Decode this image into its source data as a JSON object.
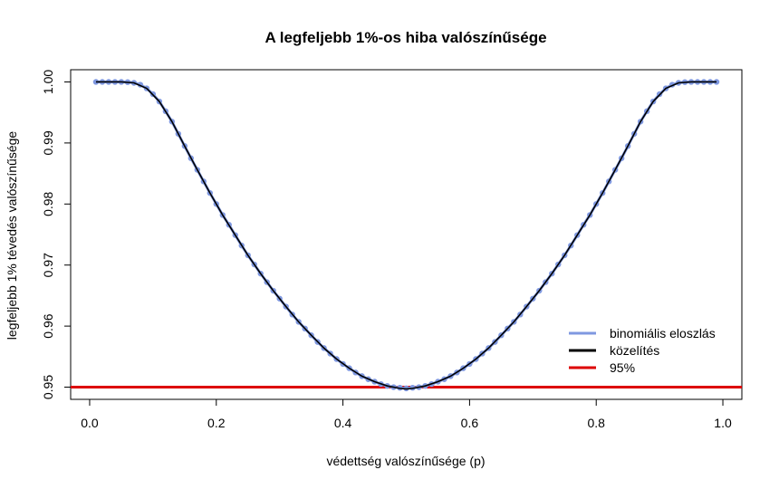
{
  "chart_data": {
    "type": "line",
    "title": "A legfeljebb 1%-os hiba valószínűsége",
    "xlabel": "védettség valószínűsége (p)",
    "ylabel": "legfeljebb 1% tévedés valószínűsége",
    "xlim": [
      -0.03,
      1.03
    ],
    "ylim": [
      0.948,
      1.002
    ],
    "x_ticks": [
      0.0,
      0.2,
      0.4,
      0.6,
      0.8,
      1.0
    ],
    "x_tick_labels": [
      "0.0",
      "0.2",
      "0.4",
      "0.6",
      "0.8",
      "1.0"
    ],
    "y_ticks": [
      0.95,
      0.96,
      0.97,
      0.98,
      0.99,
      1.0
    ],
    "y_tick_labels": [
      "0.95",
      "0.96",
      "0.97",
      "0.98",
      "0.99",
      "1.00"
    ],
    "grid": false,
    "legend_position": "bottom-right",
    "series": [
      {
        "name": "binomiális eloszlás",
        "color": "#7f98e0",
        "style": "points-line",
        "x": [
          0.01,
          0.02,
          0.03,
          0.04,
          0.05,
          0.06,
          0.07,
          0.08,
          0.09,
          0.1,
          0.11,
          0.12,
          0.13,
          0.14,
          0.15,
          0.16,
          0.17,
          0.18,
          0.19,
          0.2,
          0.21,
          0.22,
          0.23,
          0.24,
          0.25,
          0.26,
          0.27,
          0.28,
          0.29,
          0.3,
          0.31,
          0.32,
          0.33,
          0.34,
          0.35,
          0.36,
          0.37,
          0.38,
          0.39,
          0.4,
          0.41,
          0.42,
          0.43,
          0.44,
          0.45,
          0.46,
          0.47,
          0.48,
          0.49,
          0.5,
          0.51,
          0.52,
          0.53,
          0.54,
          0.55,
          0.56,
          0.57,
          0.58,
          0.59,
          0.6,
          0.61,
          0.62,
          0.63,
          0.64,
          0.65,
          0.66,
          0.67,
          0.68,
          0.69,
          0.7,
          0.71,
          0.72,
          0.73,
          0.74,
          0.75,
          0.76,
          0.77,
          0.78,
          0.79,
          0.8,
          0.81,
          0.82,
          0.83,
          0.84,
          0.85,
          0.86,
          0.87,
          0.88,
          0.89,
          0.9,
          0.91,
          0.92,
          0.93,
          0.94,
          0.95,
          0.96,
          0.97,
          0.98,
          0.99
        ],
        "y": [
          1.0,
          1.0,
          1.0,
          1.0,
          1.0,
          0.99997,
          0.99985,
          0.99955,
          0.99895,
          0.998,
          0.9968,
          0.9952,
          0.9935,
          0.9915,
          0.9895,
          0.9875,
          0.9856,
          0.9837,
          0.9818,
          0.98,
          0.9782,
          0.9766,
          0.9749,
          0.9732,
          0.9716,
          0.9701,
          0.9686,
          0.9672,
          0.9658,
          0.9645,
          0.9632,
          0.9619,
          0.9607,
          0.9596,
          0.9585,
          0.9574,
          0.9564,
          0.9555,
          0.9546,
          0.9538,
          0.9531,
          0.9524,
          0.9518,
          0.9513,
          0.9509,
          0.9505,
          0.9502,
          0.95,
          0.9499,
          0.9498,
          0.9499,
          0.95,
          0.9502,
          0.9505,
          0.9509,
          0.9513,
          0.9518,
          0.9524,
          0.9531,
          0.9538,
          0.9546,
          0.9555,
          0.9564,
          0.9574,
          0.9585,
          0.9596,
          0.9607,
          0.9619,
          0.9632,
          0.9645,
          0.9658,
          0.9672,
          0.9686,
          0.9701,
          0.9716,
          0.9732,
          0.9749,
          0.9766,
          0.9782,
          0.98,
          0.9818,
          0.9837,
          0.9856,
          0.9875,
          0.9895,
          0.9915,
          0.9935,
          0.9952,
          0.9968,
          0.998,
          0.99895,
          0.99955,
          0.99985,
          0.99997,
          1.0,
          1.0,
          1.0,
          1.0,
          1.0
        ]
      },
      {
        "name": "közelítés",
        "color": "#000000",
        "style": "line",
        "x": [
          0.01,
          0.03,
          0.05,
          0.07,
          0.09,
          0.11,
          0.13,
          0.15,
          0.17,
          0.19,
          0.21,
          0.23,
          0.25,
          0.27,
          0.29,
          0.31,
          0.33,
          0.35,
          0.37,
          0.39,
          0.41,
          0.43,
          0.45,
          0.47,
          0.49,
          0.5,
          0.51,
          0.53,
          0.55,
          0.57,
          0.59,
          0.61,
          0.63,
          0.65,
          0.67,
          0.69,
          0.71,
          0.73,
          0.75,
          0.77,
          0.79,
          0.81,
          0.83,
          0.85,
          0.87,
          0.89,
          0.91,
          0.93,
          0.95,
          0.97,
          0.99
        ],
        "y": [
          1.0,
          1.0,
          1.0,
          0.99985,
          0.99895,
          0.9968,
          0.9935,
          0.9895,
          0.9856,
          0.9818,
          0.9782,
          0.9749,
          0.9716,
          0.9686,
          0.9658,
          0.9632,
          0.9607,
          0.9585,
          0.9564,
          0.9546,
          0.9531,
          0.9518,
          0.9509,
          0.9502,
          0.9498,
          0.9497,
          0.9498,
          0.9502,
          0.9509,
          0.9518,
          0.9531,
          0.9546,
          0.9564,
          0.9585,
          0.9607,
          0.9632,
          0.9658,
          0.9686,
          0.9716,
          0.9749,
          0.9782,
          0.9818,
          0.9856,
          0.9895,
          0.9935,
          0.9968,
          0.99895,
          0.99985,
          1.0,
          1.0,
          1.0
        ]
      },
      {
        "name": "95%",
        "color": "#dd0000",
        "style": "hline",
        "y_value": 0.95
      }
    ]
  }
}
